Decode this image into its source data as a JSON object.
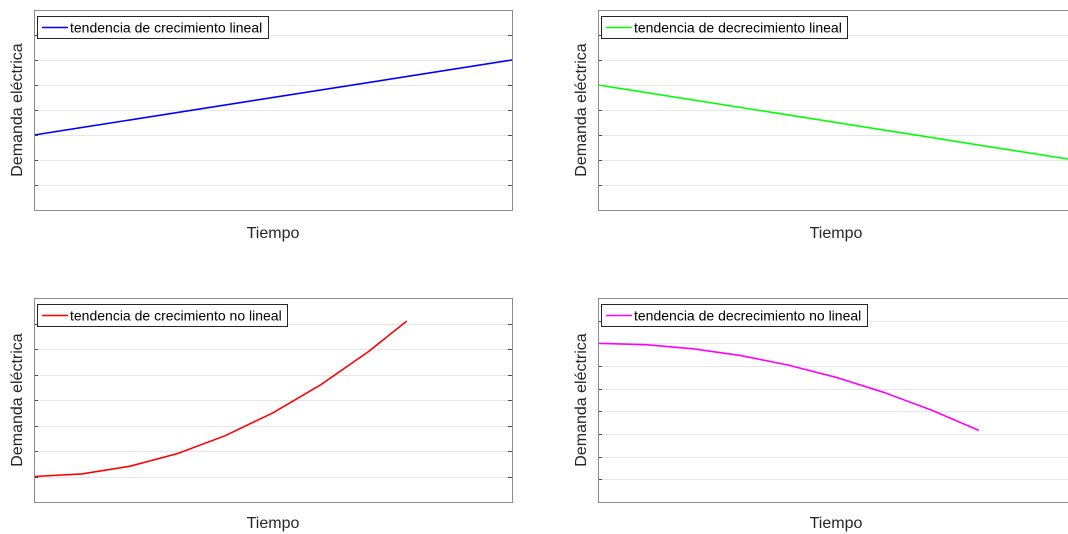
{
  "chart_data": [
    {
      "type": "line",
      "xlabel": "Tiempo",
      "ylabel": "Demanda eléctrica",
      "grid": true,
      "legend_placement": "top-left",
      "xlim": [
        0,
        10
      ],
      "ylim": [
        0,
        8
      ],
      "series": [
        {
          "name": "tendencia de crecimiento lineal",
          "color": "#0000ff",
          "x": [
            0,
            10
          ],
          "y": [
            3,
            6
          ]
        }
      ]
    },
    {
      "type": "line",
      "xlabel": "Tiempo",
      "ylabel": "Demanda eléctrica",
      "grid": true,
      "legend_placement": "top-left",
      "xlim": [
        0,
        10
      ],
      "ylim": [
        0,
        8
      ],
      "series": [
        {
          "name": "tendencia de decrecimiento lineal",
          "color": "#00ff00",
          "x": [
            0,
            10
          ],
          "y": [
            5,
            2
          ]
        }
      ]
    },
    {
      "type": "line",
      "xlabel": "Tiempo",
      "ylabel": "Demanda eléctrica",
      "grid": true,
      "legend_placement": "top-left",
      "xlim": [
        0,
        10
      ],
      "ylim": [
        0,
        8
      ],
      "series": [
        {
          "name": "tendencia de crecimiento no lineal",
          "color": "#ff0000",
          "x": [
            0,
            1,
            2,
            3,
            4,
            5,
            6,
            7,
            7.8
          ],
          "y": [
            1,
            1.1,
            1.4,
            1.9,
            2.6,
            3.5,
            4.6,
            5.9,
            7.1
          ]
        }
      ]
    },
    {
      "type": "line",
      "xlabel": "Tiempo",
      "ylabel": "Demanda eléctrica",
      "grid": true,
      "legend_placement": "top-left",
      "xlim": [
        0,
        10
      ],
      "ylim": [
        0,
        9
      ],
      "series": [
        {
          "name": "tendencia de decrecimiento no lineal",
          "color": "#ff00ff",
          "x": [
            0,
            1,
            2,
            3,
            4,
            5,
            6,
            7,
            8
          ],
          "y": [
            7,
            6.94,
            6.76,
            6.46,
            6.04,
            5.5,
            4.84,
            4.06,
            3.16
          ]
        }
      ]
    }
  ]
}
